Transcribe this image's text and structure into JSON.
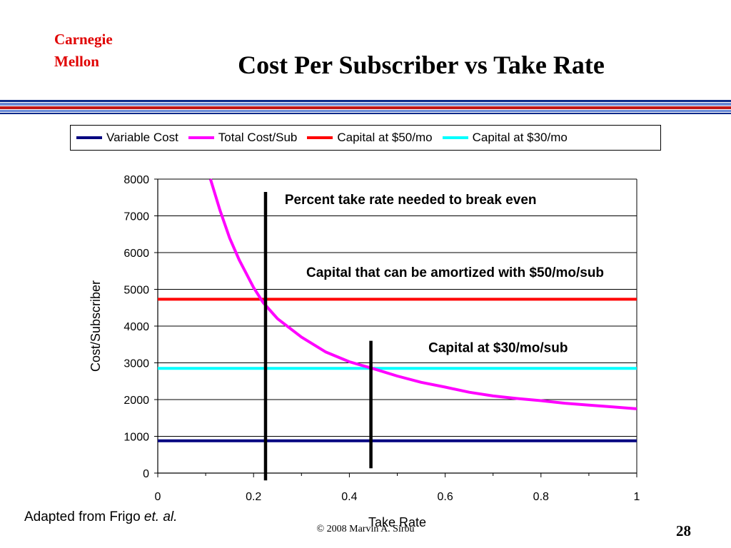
{
  "slide": {
    "logo_line1": "Carnegie",
    "logo_line2": "Mellon",
    "logo_color": "#e00000",
    "title": "Cost Per Subscriber vs Take Rate",
    "rule_colors": [
      "#0a2a8a",
      "#6a8ad6",
      "#c01818",
      "#6a8ad6",
      "#0a2a8a"
    ],
    "credit_prefix": "Adapted from Frigo ",
    "credit_italic": "et. al.",
    "footer": "©  2008  Marvin A. Sirbu",
    "page_number": "28"
  },
  "legend": [
    {
      "label": "Variable Cost",
      "color": "#000080"
    },
    {
      "label": "Total Cost/Sub",
      "color": "#ff00ff"
    },
    {
      "label": "Capital at $50/mo",
      "color": "#ff0000"
    },
    {
      "label": "Capital at $30/mo",
      "color": "#00ffff"
    }
  ],
  "chart_data": {
    "type": "line",
    "title": "",
    "xlabel": "Take Rate",
    "ylabel": "Cost/Subscriber",
    "xlim": [
      0,
      1
    ],
    "ylim": [
      0,
      8000
    ],
    "x_ticks": [
      "0",
      "0.2",
      "0.4",
      "0.6",
      "0.8",
      "1"
    ],
    "y_ticks": [
      "0",
      "1000",
      "2000",
      "3000",
      "4000",
      "5000",
      "6000",
      "7000",
      "8000"
    ],
    "grid": "horizontal",
    "legend_position": "top",
    "series": [
      {
        "name": "Variable Cost",
        "color": "#000080",
        "x": [
          0,
          1
        ],
        "y": [
          880,
          880
        ]
      },
      {
        "name": "Total Cost/Sub",
        "color": "#ff00ff",
        "x": [
          0.11,
          0.13,
          0.15,
          0.17,
          0.2,
          0.22,
          0.25,
          0.3,
          0.35,
          0.4,
          0.45,
          0.5,
          0.55,
          0.6,
          0.65,
          0.7,
          0.75,
          0.8,
          0.85,
          0.9,
          0.95,
          1.0
        ],
        "y": [
          8000,
          7150,
          6400,
          5800,
          5050,
          4640,
          4200,
          3700,
          3300,
          3030,
          2840,
          2640,
          2470,
          2340,
          2200,
          2100,
          2030,
          1970,
          1900,
          1850,
          1800,
          1750
        ]
      },
      {
        "name": "Capital at $50/mo",
        "color": "#ff0000",
        "x": [
          0,
          1
        ],
        "y": [
          4730,
          4730
        ]
      },
      {
        "name": "Capital at $30/mo",
        "color": "#00ffff",
        "x": [
          0,
          1
        ],
        "y": [
          2850,
          2850
        ]
      }
    ],
    "markers": [
      {
        "x": 0.225,
        "y_from": -200,
        "y_to": 7650
      },
      {
        "x": 0.445,
        "y_from": 130,
        "y_to": 3600
      }
    ],
    "annotations": [
      {
        "text": "Percent take rate needed to break even",
        "x": 0.265,
        "y": 7320
      },
      {
        "text": "Capital that can be amortized with $50/mo/sub",
        "x": 0.31,
        "y": 5340
      },
      {
        "text": "Capital at $30/mo/sub",
        "x": 0.565,
        "y": 3290
      }
    ]
  }
}
